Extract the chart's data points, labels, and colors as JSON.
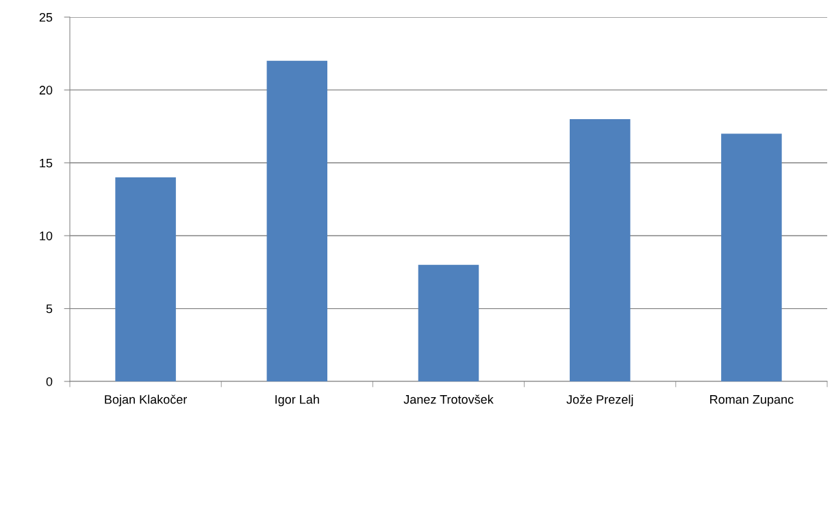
{
  "chart_data": {
    "type": "bar",
    "categories": [
      "Bojan Klakočer",
      "Igor Lah",
      "Janez Trotovšek",
      "Jože Prezelj",
      "Roman Zupanc"
    ],
    "values": [
      14,
      22,
      8,
      18,
      17
    ],
    "color": "#4f81bd",
    "ylim": [
      0,
      25
    ],
    "yticks": [
      0,
      5,
      10,
      15,
      20,
      25
    ],
    "grid": "y"
  }
}
